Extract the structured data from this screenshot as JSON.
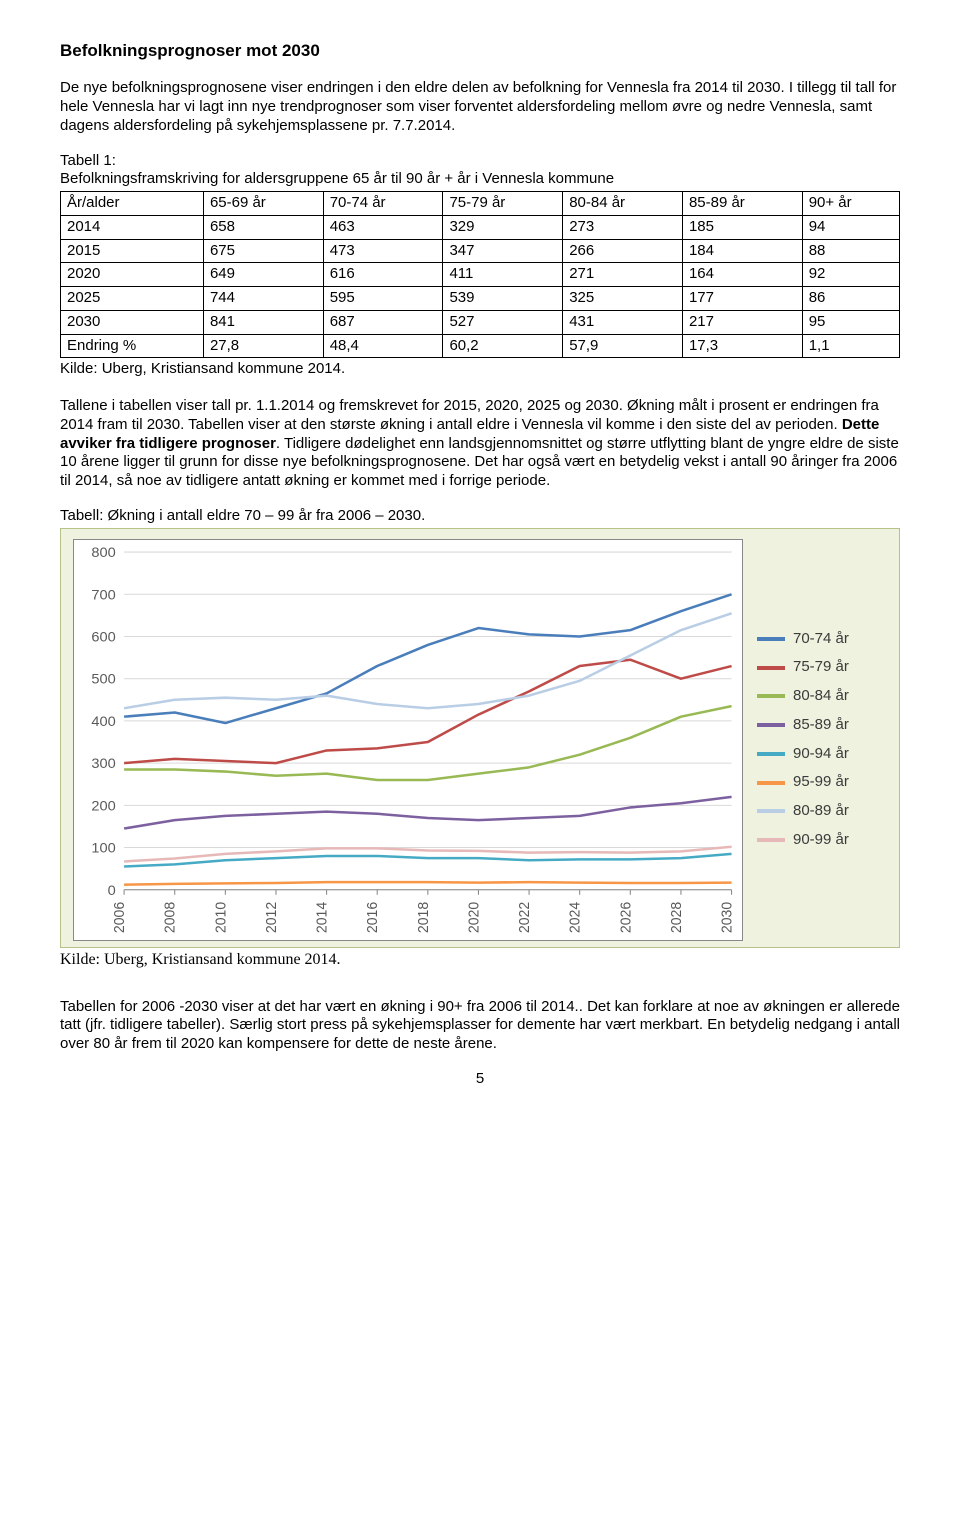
{
  "title": "Befolkningsprognoser mot 2030",
  "intro1": "De nye befolkningsprognosene viser endringen i den eldre delen av befolkning for Vennesla fra 2014 til 2030. I tillegg til tall for hele Vennesla har vi lagt inn nye trendprognoser som viser forventet aldersfordeling mellom øvre og nedre Vennesla, samt dagens aldersfordeling på sykehjemsplassene pr. 7.7.2014.",
  "table1_caption_a": "Tabell 1:",
  "table1_caption_b": "Befolkningsframskriving for aldersgruppene 65 år til 90 år + år i Vennesla kommune",
  "table1": {
    "columns": [
      "År/alder",
      "65-69 år",
      "70-74 år",
      "75-79 år",
      "80-84 år",
      "85-89 år",
      "90+ år"
    ],
    "rows": [
      [
        "2014",
        "658",
        "463",
        "329",
        "273",
        "185",
        "94"
      ],
      [
        "2015",
        "675",
        "473",
        "347",
        "266",
        "184",
        "88"
      ],
      [
        "2020",
        "649",
        "616",
        "411",
        "271",
        "164",
        "92"
      ],
      [
        "2025",
        "744",
        "595",
        "539",
        "325",
        "177",
        "86"
      ],
      [
        "2030",
        "841",
        "687",
        "527",
        "431",
        "217",
        "95"
      ],
      [
        "Endring %",
        "27,8",
        "48,4",
        "60,2",
        "57,9",
        "17,3",
        "1,1"
      ]
    ]
  },
  "source1": "Kilde: Uberg, Kristiansand kommune 2014.",
  "para2": "Tallene i tabellen viser tall pr. 1.1.2014 og fremskrevet for 2015, 2020, 2025 og 2030. Økning målt i prosent er endringen fra 2014 fram til 2030. Tabellen viser at den største økning i antall eldre i Vennesla vil komme i den siste del av perioden. ",
  "para2_bold": "Dette avviker fra tidligere prognoser",
  "para2_cont": ". Tidligere dødelighet enn landsgjennomsnittet og større utflytting blant de yngre eldre de siste 10 årene ligger til grunn for disse nye befolkningsprognosene. Det har også vært en betydelig vekst i antall 90 åringer fra 2006 til 2014, så noe av tidligere antatt økning er kommet med i forrige periode.",
  "chart_caption": "Tabell: Økning i antall eldre 70 – 99 år fra 2006 – 2030.",
  "chart": {
    "type": "line",
    "background_color": "#eef2df",
    "plot_background": "#ffffff",
    "border_color": "#b5c28a",
    "grid_color": "#d9d9d9",
    "ylim": [
      0,
      800
    ],
    "ytick_step": 100,
    "x_labels": [
      "2006",
      "2008",
      "2010",
      "2012",
      "2014",
      "2016",
      "2018",
      "2020",
      "2022",
      "2024",
      "2026",
      "2028",
      "2030"
    ],
    "line_width": 2.5,
    "series": [
      {
        "name": "70-74 år",
        "color": "#4a7ebb",
        "values": [
          410,
          420,
          395,
          430,
          465,
          530,
          580,
          620,
          605,
          600,
          615,
          660,
          700
        ]
      },
      {
        "name": "75-79 år",
        "color": "#be4b48",
        "values": [
          300,
          310,
          305,
          300,
          330,
          335,
          350,
          415,
          470,
          530,
          545,
          500,
          530
        ]
      },
      {
        "name": "80-84 år",
        "color": "#98b954",
        "values": [
          285,
          285,
          280,
          270,
          275,
          260,
          260,
          275,
          290,
          320,
          360,
          410,
          435
        ]
      },
      {
        "name": "85-89 år",
        "color": "#7d60a0",
        "values": [
          145,
          165,
          175,
          180,
          185,
          180,
          170,
          165,
          170,
          175,
          195,
          205,
          220
        ]
      },
      {
        "name": "90-94 år",
        "color": "#46aac5",
        "values": [
          55,
          60,
          70,
          75,
          80,
          80,
          75,
          75,
          70,
          72,
          72,
          75,
          85
        ]
      },
      {
        "name": "95-99 år",
        "color": "#f79646",
        "values": [
          12,
          14,
          15,
          16,
          18,
          18,
          18,
          17,
          18,
          17,
          16,
          16,
          17
        ]
      },
      {
        "name": "80-89 år",
        "color": "#b9cde5",
        "values": [
          430,
          450,
          455,
          450,
          460,
          440,
          430,
          440,
          460,
          495,
          555,
          615,
          655
        ]
      },
      {
        "name": "90-99 år",
        "color": "#e6b9b8",
        "values": [
          67,
          74,
          85,
          91,
          98,
          98,
          93,
          92,
          88,
          89,
          88,
          91,
          102
        ]
      }
    ]
  },
  "chart_source": "Kilde: Uberg, Kristiansand kommune 2014.",
  "para3": "Tabellen for 2006 -2030 viser at det har vært en økning i 90+ fra 2006 til 2014.. Det kan forklare at noe av økningen er allerede tatt (jfr. tidligere tabeller). Særlig stort press på sykehjemsplasser for demente har vært merkbart. En betydelig nedgang i antall over 80 år frem til 2020 kan kompensere for dette de neste årene.",
  "page_number": "5"
}
